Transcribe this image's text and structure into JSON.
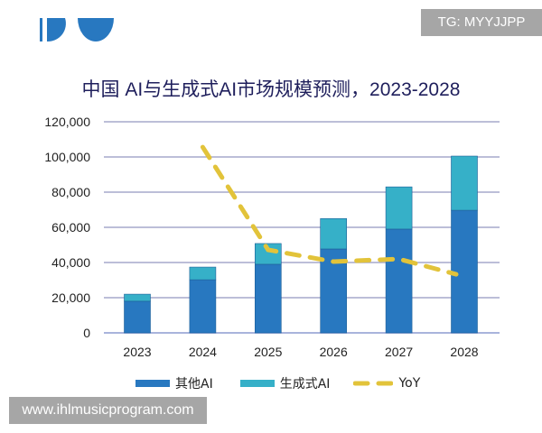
{
  "watermarks": {
    "top_right": "TG: MYYJJPP",
    "bottom_left": "www.ihlmusicprogram.com"
  },
  "chart_data": {
    "type": "bar",
    "stacked": true,
    "title": "中国 AI与生成式AI市场规模预测，2023-2028",
    "categories": [
      "2023",
      "2024",
      "2025",
      "2026",
      "2027",
      "2028"
    ],
    "ylim": [
      0,
      120000
    ],
    "yticks": [
      "0",
      "20,000",
      "40,000",
      "60,000",
      "80,000",
      "100,000",
      "120,000"
    ],
    "ytick_values": [
      0,
      20000,
      40000,
      60000,
      80000,
      100000,
      120000
    ],
    "grid": true,
    "legend_placement": "bottom",
    "series": [
      {
        "name": "其他AI",
        "type": "bar",
        "color": "#2878c0",
        "values": [
          18000,
          30200,
          39000,
          47700,
          59000,
          69700
        ]
      },
      {
        "name": "生成式AI",
        "type": "bar",
        "color": "#36b0c8",
        "values": [
          4000,
          7200,
          11800,
          17300,
          24000,
          30800
        ]
      },
      {
        "name": "YoY",
        "type": "line",
        "style": "dashed",
        "color": "#e2c33a",
        "x": [
          "2024",
          "2025",
          "2026",
          "2027",
          "2028"
        ],
        "values": [
          105600,
          47200,
          40500,
          42000,
          33300
        ]
      }
    ]
  }
}
